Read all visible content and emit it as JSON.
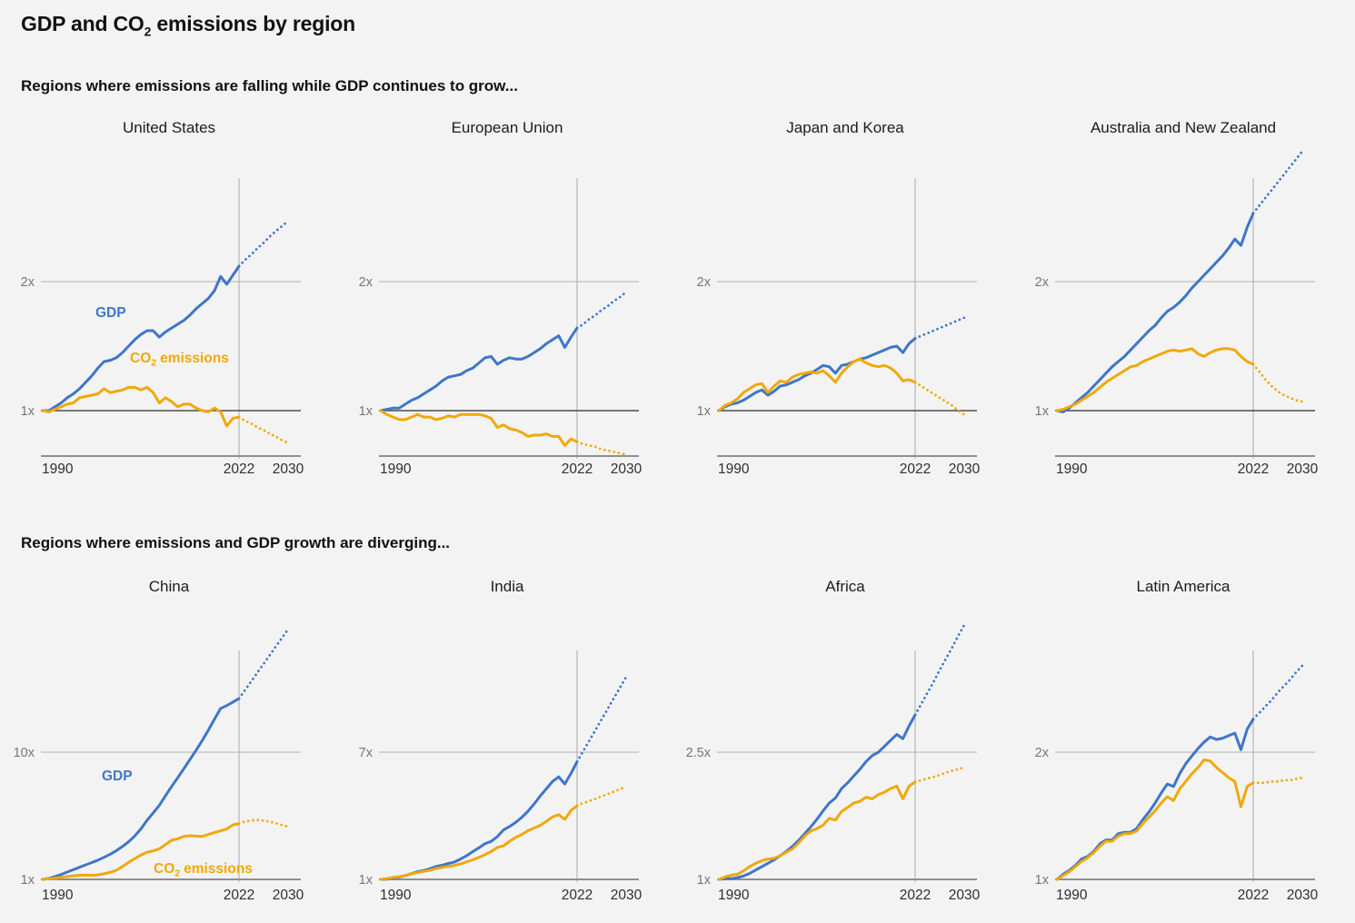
{
  "page": {
    "title_prefix": "GDP and CO",
    "title_sub": "2",
    "title_suffix": " emissions by region",
    "background": "#f3f3f3"
  },
  "colors": {
    "gdp": "#3e76c9",
    "co2": "#f0a80a",
    "grid_light": "#c8c8c8",
    "vertical_line": "#b5b5b5",
    "baseline_dark": "#4d4d4d",
    "axis_gray": "#8f8f8f",
    "y_label": "#767676",
    "x_label": "#2f2f2f"
  },
  "legend": {
    "gdp_label": "GDP",
    "co2_prefix": "CO",
    "co2_sub": "2",
    "co2_suffix": "emissions"
  },
  "sections": [
    {
      "heading": "Regions where emissions are falling while GDP continues to grow...",
      "chart_indexes": [
        0,
        1,
        2,
        3
      ]
    },
    {
      "heading": "Regions where emissions and GDP growth are diverging...",
      "chart_indexes": [
        4,
        5,
        6,
        7
      ]
    }
  ],
  "chart_data": [
    {
      "type": "line",
      "title": "United States",
      "region": "united-states",
      "x_start_year": 1990,
      "x_end_year": 2030,
      "projection_from_year": 2022,
      "x_tick_labels": [
        "1990",
        "2022",
        "2030"
      ],
      "y_gridline": {
        "label": "2x",
        "value": 2
      },
      "y_baseline": {
        "label": "1x",
        "value": 1
      },
      "show_series_labels": true,
      "series": [
        {
          "name": "GDP",
          "values": [
            1.0,
            1.0,
            1.03,
            1.06,
            1.1,
            1.13,
            1.17,
            1.22,
            1.27,
            1.33,
            1.38,
            1.39,
            1.41,
            1.45,
            1.5,
            1.55,
            1.59,
            1.62,
            1.62,
            1.57,
            1.61,
            1.64,
            1.67,
            1.7,
            1.74,
            1.79,
            1.83,
            1.87,
            1.93,
            2.04,
            1.98,
            2.05,
            2.12,
            2.17,
            2.21,
            2.26,
            2.3,
            2.35,
            2.39,
            2.43,
            2.47
          ]
        },
        {
          "name": "CO2 emissions",
          "values": [
            1.0,
            0.99,
            1.01,
            1.03,
            1.05,
            1.06,
            1.1,
            1.11,
            1.12,
            1.13,
            1.17,
            1.14,
            1.15,
            1.16,
            1.18,
            1.18,
            1.16,
            1.18,
            1.14,
            1.06,
            1.1,
            1.07,
            1.03,
            1.05,
            1.05,
            1.02,
            1.0,
            0.99,
            1.02,
            0.99,
            0.88,
            0.94,
            0.95,
            0.92,
            0.9,
            0.87,
            0.85,
            0.82,
            0.8,
            0.77,
            0.75
          ]
        }
      ]
    },
    {
      "type": "line",
      "title": "European Union",
      "region": "european-union",
      "x_start_year": 1990,
      "x_end_year": 2030,
      "projection_from_year": 2022,
      "x_tick_labels": [
        "1990",
        "2022",
        "2030"
      ],
      "y_gridline": {
        "label": "2x",
        "value": 2
      },
      "y_baseline": {
        "label": "1x",
        "value": 1
      },
      "show_series_labels": false,
      "series": [
        {
          "name": "GDP",
          "values": [
            1.0,
            1.01,
            1.02,
            1.02,
            1.05,
            1.08,
            1.1,
            1.13,
            1.16,
            1.19,
            1.23,
            1.26,
            1.27,
            1.28,
            1.31,
            1.33,
            1.37,
            1.41,
            1.42,
            1.36,
            1.39,
            1.41,
            1.4,
            1.4,
            1.42,
            1.45,
            1.48,
            1.52,
            1.55,
            1.58,
            1.49,
            1.57,
            1.64,
            1.67,
            1.71,
            1.74,
            1.78,
            1.81,
            1.85,
            1.88,
            1.92
          ]
        },
        {
          "name": "CO2 emissions",
          "values": [
            1.0,
            0.97,
            0.95,
            0.93,
            0.93,
            0.95,
            0.97,
            0.95,
            0.95,
            0.93,
            0.94,
            0.96,
            0.95,
            0.97,
            0.97,
            0.97,
            0.97,
            0.96,
            0.94,
            0.87,
            0.89,
            0.86,
            0.85,
            0.83,
            0.8,
            0.81,
            0.81,
            0.82,
            0.8,
            0.8,
            0.73,
            0.78,
            0.76,
            0.74,
            0.73,
            0.72,
            0.7,
            0.69,
            0.68,
            0.67,
            0.66
          ]
        }
      ]
    },
    {
      "type": "line",
      "title": "Japan and Korea",
      "region": "japan-and-korea",
      "x_start_year": 1990,
      "x_end_year": 2030,
      "projection_from_year": 2022,
      "x_tick_labels": [
        "1990",
        "2022",
        "2030"
      ],
      "y_gridline": {
        "label": "2x",
        "value": 2
      },
      "y_baseline": {
        "label": "1x",
        "value": 1
      },
      "show_series_labels": false,
      "series": [
        {
          "name": "GDP",
          "values": [
            1.0,
            1.03,
            1.05,
            1.06,
            1.08,
            1.11,
            1.14,
            1.16,
            1.12,
            1.15,
            1.19,
            1.2,
            1.22,
            1.24,
            1.27,
            1.29,
            1.32,
            1.35,
            1.34,
            1.29,
            1.35,
            1.36,
            1.38,
            1.4,
            1.41,
            1.43,
            1.45,
            1.47,
            1.49,
            1.5,
            1.45,
            1.52,
            1.56,
            1.58,
            1.6,
            1.62,
            1.64,
            1.66,
            1.68,
            1.7,
            1.72
          ]
        },
        {
          "name": "CO2 emissions",
          "values": [
            1.0,
            1.04,
            1.06,
            1.09,
            1.14,
            1.17,
            1.2,
            1.21,
            1.14,
            1.19,
            1.23,
            1.22,
            1.26,
            1.28,
            1.29,
            1.3,
            1.29,
            1.31,
            1.27,
            1.22,
            1.29,
            1.34,
            1.38,
            1.4,
            1.37,
            1.35,
            1.34,
            1.35,
            1.33,
            1.29,
            1.23,
            1.24,
            1.22,
            1.19,
            1.16,
            1.13,
            1.1,
            1.07,
            1.04,
            1.0,
            0.97
          ]
        }
      ]
    },
    {
      "type": "line",
      "title": "Australia and New Zealand",
      "region": "australia-and-new-zealand",
      "x_start_year": 1990,
      "x_end_year": 2030,
      "projection_from_year": 2022,
      "x_tick_labels": [
        "1990",
        "2022",
        "2030"
      ],
      "y_gridline": {
        "label": "2x",
        "value": 2
      },
      "y_baseline": {
        "label": "1x",
        "value": 1
      },
      "show_series_labels": false,
      "series": [
        {
          "name": "GDP",
          "values": [
            1.0,
            0.99,
            1.02,
            1.06,
            1.1,
            1.14,
            1.19,
            1.24,
            1.29,
            1.34,
            1.38,
            1.42,
            1.47,
            1.52,
            1.57,
            1.62,
            1.66,
            1.72,
            1.77,
            1.8,
            1.84,
            1.89,
            1.95,
            2.0,
            2.05,
            2.1,
            2.15,
            2.2,
            2.26,
            2.33,
            2.28,
            2.42,
            2.53,
            2.59,
            2.65,
            2.71,
            2.77,
            2.83,
            2.89,
            2.95,
            3.01
          ]
        },
        {
          "name": "CO2 emissions",
          "values": [
            1.0,
            1.01,
            1.03,
            1.05,
            1.08,
            1.11,
            1.14,
            1.18,
            1.22,
            1.25,
            1.28,
            1.31,
            1.34,
            1.35,
            1.38,
            1.4,
            1.42,
            1.44,
            1.46,
            1.47,
            1.46,
            1.47,
            1.48,
            1.44,
            1.42,
            1.45,
            1.47,
            1.48,
            1.48,
            1.47,
            1.42,
            1.38,
            1.36,
            1.3,
            1.24,
            1.19,
            1.15,
            1.12,
            1.1,
            1.08,
            1.07
          ]
        }
      ]
    },
    {
      "type": "line",
      "title": "China",
      "region": "china",
      "x_start_year": 1990,
      "x_end_year": 2030,
      "projection_from_year": 2022,
      "x_tick_labels": [
        "1990",
        "2022",
        "2030"
      ],
      "y_gridline": {
        "label": "10x",
        "value": 10
      },
      "y_baseline": {
        "label": "1x",
        "value": 1
      },
      "show_series_labels": true,
      "series": [
        {
          "name": "GDP",
          "values": [
            1.0,
            1.08,
            1.2,
            1.35,
            1.52,
            1.69,
            1.86,
            2.03,
            2.19,
            2.36,
            2.56,
            2.78,
            3.03,
            3.33,
            3.66,
            4.07,
            4.57,
            5.18,
            5.7,
            6.24,
            6.91,
            7.57,
            8.19,
            8.83,
            9.48,
            10.14,
            10.82,
            11.56,
            12.34,
            13.1,
            13.3,
            13.55,
            13.8,
            14.41,
            15.02,
            15.64,
            16.25,
            16.86,
            17.48,
            18.09,
            18.7
          ]
        },
        {
          "name": "CO2 emissions",
          "values": [
            1.0,
            1.05,
            1.09,
            1.15,
            1.2,
            1.26,
            1.29,
            1.3,
            1.29,
            1.32,
            1.4,
            1.5,
            1.64,
            1.91,
            2.21,
            2.47,
            2.72,
            2.92,
            3.02,
            3.16,
            3.46,
            3.77,
            3.87,
            4.05,
            4.09,
            4.06,
            4.04,
            4.18,
            4.32,
            4.44,
            4.57,
            4.86,
            4.95,
            5.1,
            5.18,
            5.2,
            5.16,
            5.08,
            4.97,
            4.85,
            4.72
          ]
        }
      ]
    },
    {
      "type": "line",
      "title": "India",
      "region": "india",
      "x_start_year": 1990,
      "x_end_year": 2030,
      "projection_from_year": 2022,
      "x_tick_labels": [
        "1990",
        "2022",
        "2030"
      ],
      "y_gridline": {
        "label": "7x",
        "value": 7
      },
      "y_baseline": {
        "label": "1x",
        "value": 1
      },
      "show_series_labels": false,
      "series": [
        {
          "name": "GDP",
          "values": [
            1.0,
            1.01,
            1.06,
            1.11,
            1.18,
            1.27,
            1.36,
            1.42,
            1.5,
            1.61,
            1.67,
            1.75,
            1.82,
            1.96,
            2.12,
            2.31,
            2.49,
            2.69,
            2.79,
            3.02,
            3.33,
            3.5,
            3.69,
            3.93,
            4.22,
            4.56,
            4.94,
            5.28,
            5.62,
            5.84,
            5.5,
            6.0,
            6.55,
            7.05,
            7.55,
            8.05,
            8.55,
            9.05,
            9.55,
            10.05,
            10.55
          ]
        },
        {
          "name": "CO2 emissions",
          "values": [
            1.0,
            1.04,
            1.09,
            1.13,
            1.19,
            1.26,
            1.32,
            1.38,
            1.43,
            1.51,
            1.57,
            1.61,
            1.66,
            1.73,
            1.83,
            1.92,
            2.04,
            2.17,
            2.31,
            2.51,
            2.58,
            2.8,
            2.98,
            3.12,
            3.3,
            3.42,
            3.55,
            3.74,
            3.95,
            4.05,
            3.83,
            4.25,
            4.48,
            4.6,
            4.7,
            4.8,
            4.92,
            5.03,
            5.14,
            5.26,
            5.38
          ]
        }
      ]
    },
    {
      "type": "line",
      "title": "Africa",
      "region": "africa",
      "x_start_year": 1990,
      "x_end_year": 2030,
      "projection_from_year": 2022,
      "x_tick_labels": [
        "1990",
        "2022",
        "2030"
      ],
      "y_gridline": {
        "label": "2.5x",
        "value": 2.5
      },
      "y_baseline": {
        "label": "1x",
        "value": 1
      },
      "show_series_labels": false,
      "series": [
        {
          "name": "GDP",
          "values": [
            1.0,
            1.01,
            1.01,
            1.02,
            1.04,
            1.07,
            1.11,
            1.15,
            1.19,
            1.23,
            1.28,
            1.33,
            1.39,
            1.46,
            1.54,
            1.62,
            1.71,
            1.81,
            1.9,
            1.96,
            2.07,
            2.14,
            2.22,
            2.3,
            2.39,
            2.46,
            2.5,
            2.57,
            2.64,
            2.71,
            2.66,
            2.81,
            2.94,
            3.07,
            3.2,
            3.33,
            3.47,
            3.6,
            3.73,
            3.87,
            4.0
          ]
        },
        {
          "name": "CO2 emissions",
          "values": [
            1.0,
            1.03,
            1.05,
            1.06,
            1.1,
            1.15,
            1.19,
            1.22,
            1.24,
            1.25,
            1.28,
            1.32,
            1.36,
            1.43,
            1.51,
            1.57,
            1.6,
            1.64,
            1.72,
            1.7,
            1.8,
            1.85,
            1.9,
            1.92,
            1.97,
            1.95,
            2.0,
            2.03,
            2.07,
            2.1,
            1.95,
            2.1,
            2.15,
            2.17,
            2.19,
            2.21,
            2.23,
            2.26,
            2.28,
            2.3,
            2.32
          ]
        }
      ]
    },
    {
      "type": "line",
      "title": "Latin America",
      "region": "latin-america",
      "x_start_year": 1990,
      "x_end_year": 2030,
      "projection_from_year": 2022,
      "x_tick_labels": [
        "1990",
        "2022",
        "2030"
      ],
      "y_gridline": {
        "label": "2x",
        "value": 2
      },
      "y_baseline": {
        "label": "1x",
        "value": 1
      },
      "show_series_labels": false,
      "series": [
        {
          "name": "GDP",
          "values": [
            1.0,
            1.04,
            1.07,
            1.11,
            1.16,
            1.18,
            1.22,
            1.28,
            1.31,
            1.31,
            1.36,
            1.37,
            1.37,
            1.4,
            1.47,
            1.53,
            1.6,
            1.68,
            1.75,
            1.73,
            1.83,
            1.91,
            1.97,
            2.03,
            2.08,
            2.12,
            2.1,
            2.11,
            2.13,
            2.15,
            2.02,
            2.18,
            2.26,
            2.31,
            2.36,
            2.41,
            2.47,
            2.52,
            2.57,
            2.63,
            2.68
          ]
        },
        {
          "name": "CO2 emissions",
          "values": [
            1.0,
            1.03,
            1.06,
            1.1,
            1.14,
            1.17,
            1.21,
            1.26,
            1.3,
            1.3,
            1.34,
            1.36,
            1.36,
            1.38,
            1.44,
            1.49,
            1.54,
            1.6,
            1.65,
            1.62,
            1.71,
            1.77,
            1.83,
            1.88,
            1.94,
            1.93,
            1.88,
            1.84,
            1.8,
            1.77,
            1.57,
            1.73,
            1.76,
            1.76,
            1.76,
            1.77,
            1.77,
            1.78,
            1.78,
            1.79,
            1.8
          ]
        }
      ]
    }
  ]
}
